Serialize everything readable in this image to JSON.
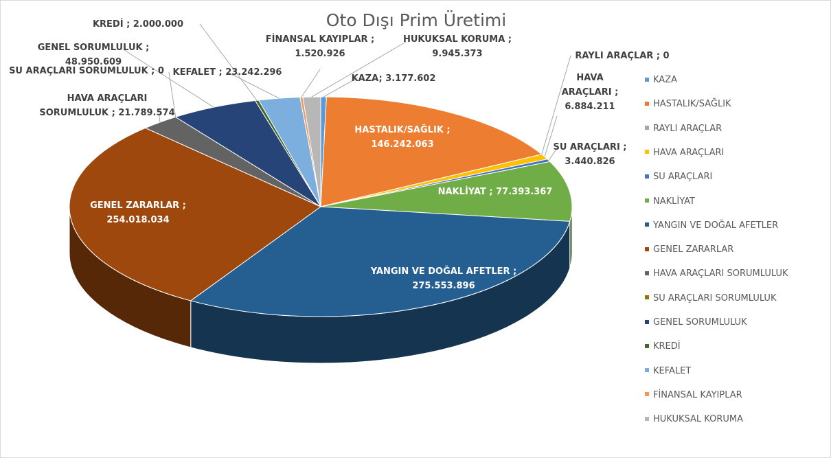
{
  "chart_data": {
    "type": "pie3d",
    "title": "Oto Dışı Prim Üretimi",
    "categories": [
      "KAZA",
      "HASTALIK/SAĞLIK",
      "RAYLI ARAÇLAR",
      "HAVA ARAÇLARI",
      "SU ARAÇLARI",
      "NAKLİYAT",
      "YANGIN VE DOĞAL AFETLER",
      "GENEL ZARARLAR",
      "HAVA ARAÇLARI SORUMLULUK",
      "SU ARAÇLARI SORUMLULUK",
      "GENEL SORUMLULUK",
      "KREDİ",
      "KEFALET",
      "FİNANSAL KAYIPLAR",
      "HUKUKSAL KORUMA"
    ],
    "values": [
      3177602,
      146242063,
      0,
      6884211,
      3440826,
      77393367,
      275553896,
      254018034,
      21789574,
      0,
      48950609,
      2000000,
      23242296,
      1520926,
      9945373
    ],
    "value_labels": [
      "KAZA; 3.177.602",
      "HASTALIK/SAĞLIK ; 146.242.063",
      "RAYLI ARAÇLAR ; 0",
      "HAVA ARAÇLARI ; 6.884.211",
      "SU ARAÇLARI ; 3.440.826",
      "NAKLİYAT ; 77.393.367",
      "YANGIN VE DOĞAL AFETLER ; 275.553.896",
      "GENEL ZARARLAR ; 254.018.034",
      "HAVA ARAÇLARI SORUMLULUK ; 21.789.574",
      "SU ARAÇLARI SORUMLULUK ; 0",
      "GENEL SORUMLULUK ; 48.950.609",
      "KREDİ ; 2.000.000",
      "KEFALET ; 23.242.296",
      "FİNANSAL KAYIPLAR ; 1.520.926",
      "HUKUKSAL KORUMA ; 9.945.373"
    ],
    "colors": [
      "#5b9bd5",
      "#ed7d31",
      "#a5a5a5",
      "#ffc000",
      "#4472c4",
      "#70ad47",
      "#255e91",
      "#9e480e",
      "#636363",
      "#997300",
      "#264478",
      "#43682b",
      "#7cafdd",
      "#f1975a",
      "#b7b7b7"
    ],
    "legend": "right"
  }
}
